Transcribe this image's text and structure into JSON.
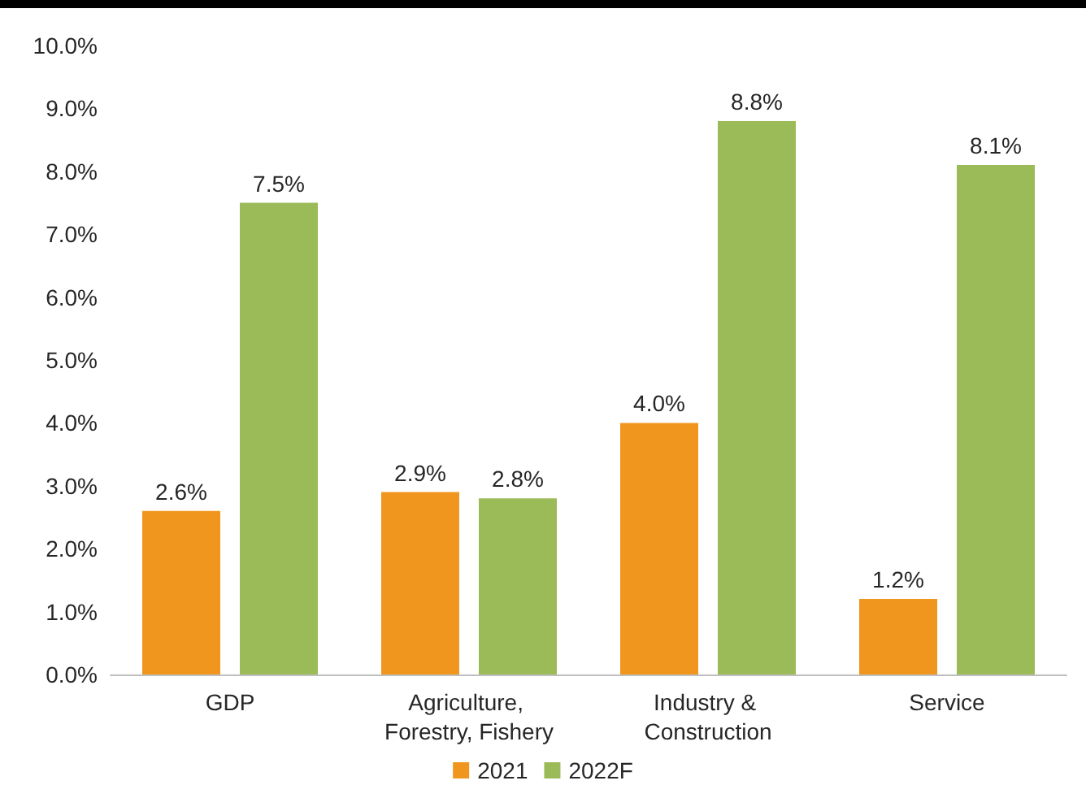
{
  "chart_data": {
    "type": "bar",
    "categories": [
      "GDP",
      "Agriculture, Forestry, Fishery",
      "Industry & Construction",
      "Service"
    ],
    "series": [
      {
        "name": "2021",
        "color": "#f0961e",
        "values": [
          2.6,
          2.9,
          4.0,
          1.2
        ],
        "value_labels": [
          "2.6%",
          "2.9%",
          "4.0%",
          "1.2%"
        ]
      },
      {
        "name": "2022F",
        "color": "#9bbb59",
        "values": [
          7.5,
          2.8,
          8.8,
          8.1
        ],
        "value_labels": [
          "7.5%",
          "2.8%",
          "8.8%",
          "8.1%"
        ]
      }
    ],
    "ylim": [
      0,
      10
    ],
    "yticks": [
      {
        "value": 0,
        "label": "0.0%"
      },
      {
        "value": 1,
        "label": "1.0%"
      },
      {
        "value": 2,
        "label": "2.0%"
      },
      {
        "value": 3,
        "label": "3.0%"
      },
      {
        "value": 4,
        "label": "4.0%"
      },
      {
        "value": 5,
        "label": "5.0%"
      },
      {
        "value": 6,
        "label": "6.0%"
      },
      {
        "value": 7,
        "label": "7.0%"
      },
      {
        "value": 8,
        "label": "8.0%"
      },
      {
        "value": 9,
        "label": "9.0%"
      },
      {
        "value": 10,
        "label": "10.0%"
      }
    ],
    "grid": false,
    "legend": "bottom"
  }
}
